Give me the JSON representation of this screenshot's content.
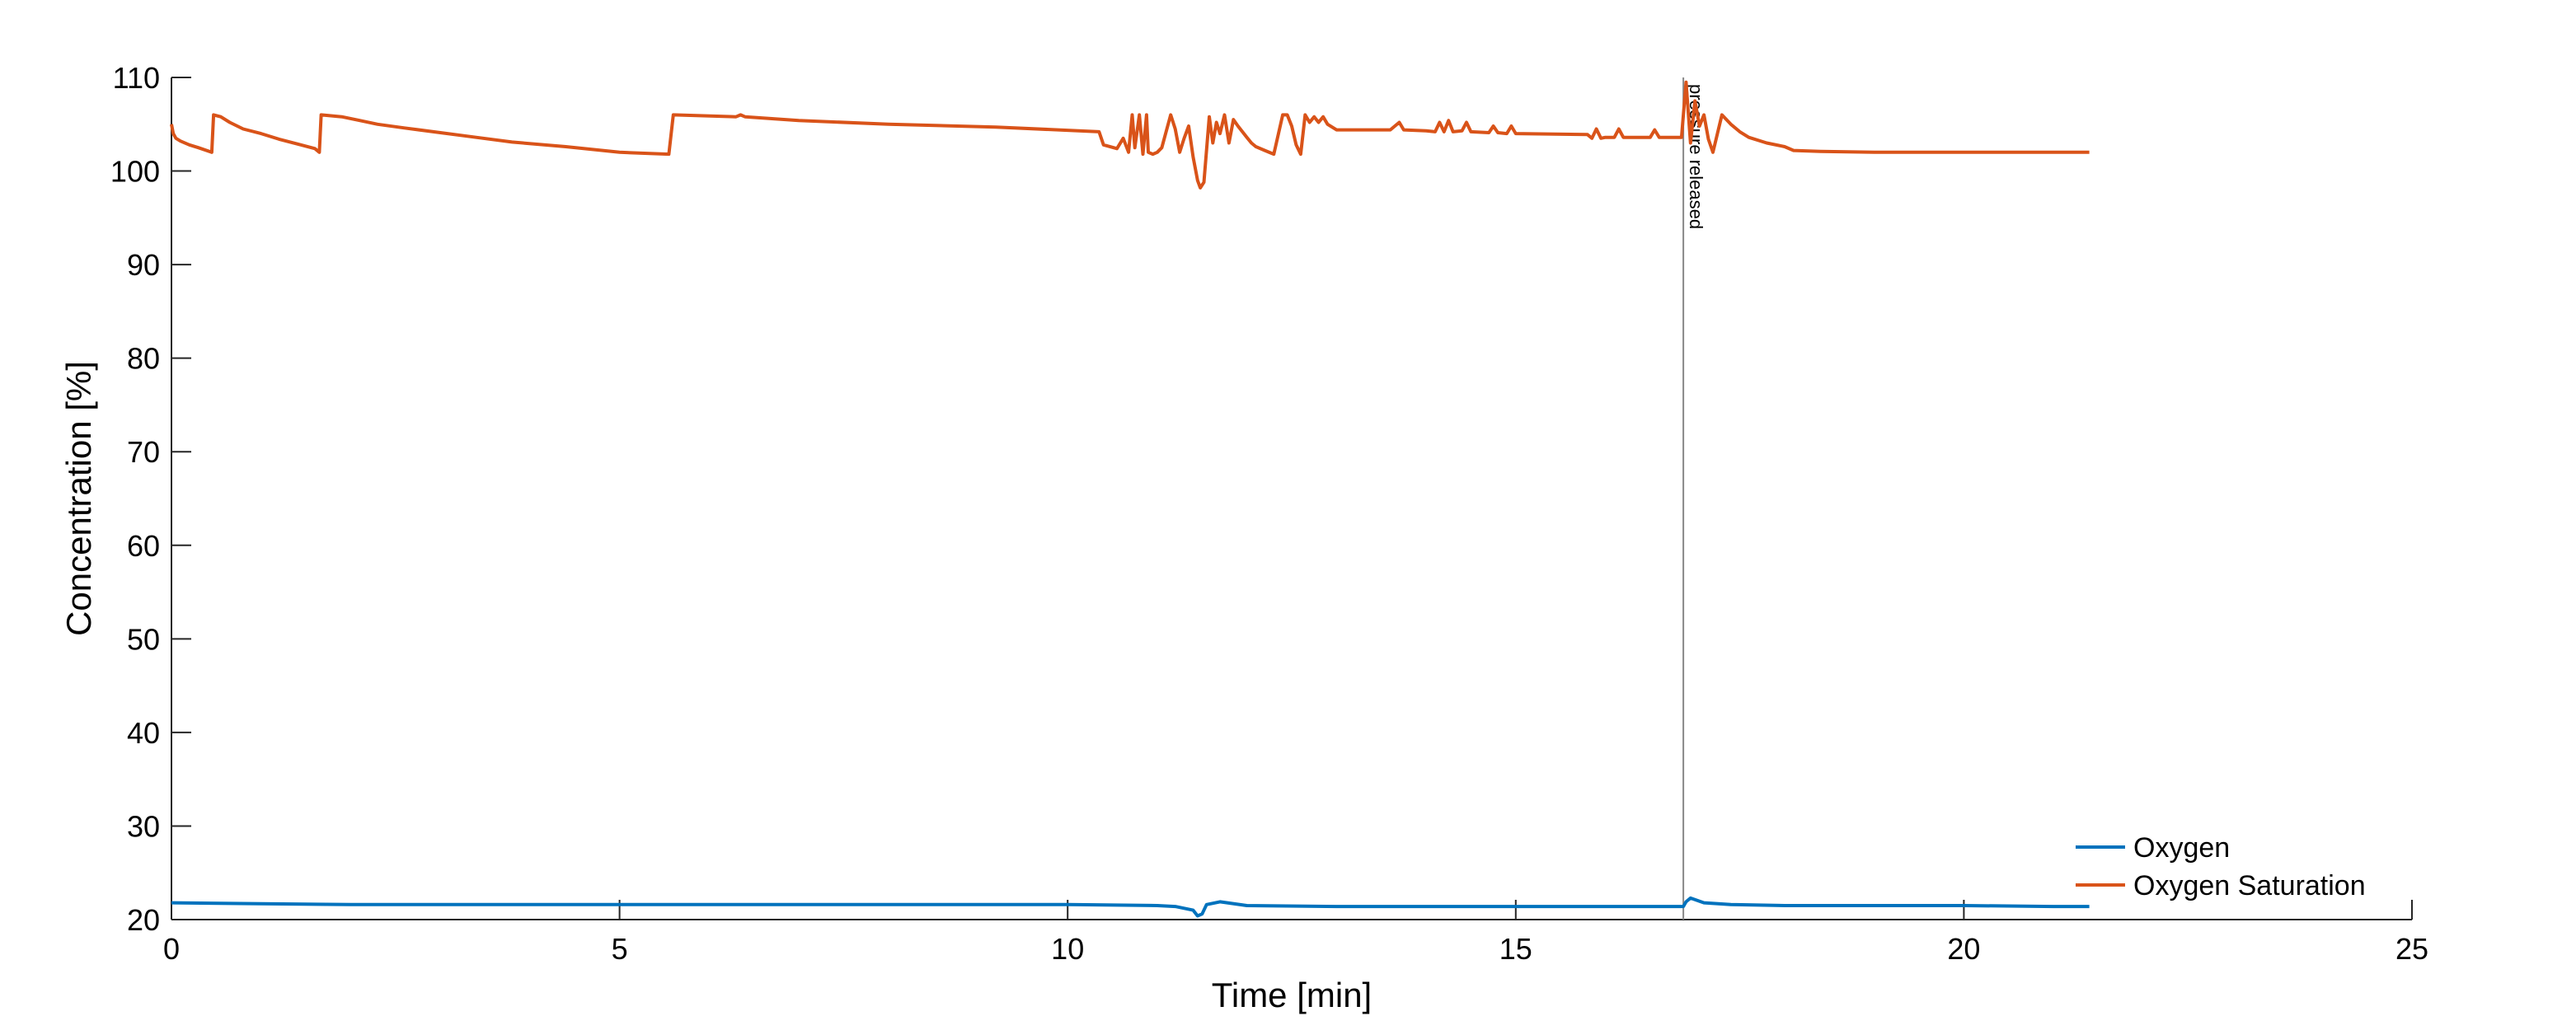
{
  "chart_data": {
    "type": "line",
    "xlabel": "Time [min]",
    "ylabel": "Concentration [%]",
    "xlim": [
      0,
      25
    ],
    "ylim": [
      20,
      110
    ],
    "xticks": [
      0,
      5,
      10,
      15,
      20,
      25
    ],
    "yticks": [
      20,
      30,
      40,
      50,
      60,
      70,
      80,
      90,
      100,
      110
    ],
    "grid": false,
    "legend_position": "bottom-right",
    "annotations": [
      {
        "type": "vertical-line",
        "x": 16.87,
        "text": "pressure released",
        "color": "#888888"
      }
    ],
    "series": [
      {
        "name": "Oxygen",
        "color": "#0072BD",
        "x": [
          0,
          1,
          2,
          3,
          4,
          5,
          6,
          7,
          8,
          9,
          10,
          11,
          11.2,
          11.4,
          11.45,
          11.5,
          11.55,
          11.7,
          12,
          13,
          14,
          15,
          16,
          16.87,
          16.9,
          16.95,
          17.1,
          17.4,
          18,
          19,
          20,
          21,
          21.4
        ],
        "y": [
          21.8,
          21.7,
          21.6,
          21.6,
          21.6,
          21.6,
          21.6,
          21.6,
          21.6,
          21.6,
          21.6,
          21.5,
          21.4,
          21.0,
          20.4,
          20.6,
          21.6,
          21.9,
          21.5,
          21.4,
          21.4,
          21.4,
          21.4,
          21.4,
          21.9,
          22.3,
          21.8,
          21.6,
          21.5,
          21.5,
          21.5,
          21.4,
          21.4
        ]
      },
      {
        "name": "Oxygen Saturation",
        "color": "#D95319",
        "x": [
          0,
          0.02,
          0.05,
          0.1,
          0.2,
          0.3,
          0.45,
          0.47,
          0.55,
          0.65,
          0.8,
          1.0,
          1.2,
          1.4,
          1.6,
          1.65,
          1.67,
          1.9,
          2.1,
          2.3,
          2.6,
          3.0,
          3.4,
          3.8,
          4.4,
          5.0,
          5.55,
          5.6,
          6.3,
          6.35,
          6.4,
          7.0,
          8.0,
          9.2,
          10.35,
          10.4,
          10.55,
          10.62,
          10.68,
          10.72,
          10.75,
          10.8,
          10.84,
          10.88,
          10.9,
          10.95,
          11.0,
          11.05,
          11.15,
          11.2,
          11.25,
          11.3,
          11.35,
          11.4,
          11.45,
          11.48,
          11.52,
          11.58,
          11.62,
          11.66,
          11.7,
          11.75,
          11.8,
          11.85,
          11.9,
          12.0,
          12.05,
          12.1,
          12.2,
          12.3,
          12.4,
          12.45,
          12.5,
          12.55,
          12.6,
          12.65,
          12.7,
          12.75,
          12.8,
          12.85,
          12.9,
          13.0,
          13.6,
          13.7,
          13.75,
          14.0,
          14.1,
          14.15,
          14.2,
          14.25,
          14.3,
          14.4,
          14.45,
          14.5,
          14.7,
          14.75,
          14.8,
          14.9,
          14.95,
          15.0,
          15.8,
          15.85,
          15.9,
          15.95,
          16.0,
          16.1,
          16.15,
          16.2,
          16.5,
          16.55,
          16.6,
          16.85,
          16.9,
          16.95,
          17.0,
          17.05,
          17.1,
          17.15,
          17.2,
          17.3,
          17.4,
          17.5,
          17.6,
          17.8,
          18.0,
          18.1,
          18.4,
          19.0,
          20.0,
          21.0,
          21.4
        ],
        "y": [
          105,
          104,
          103.5,
          103.2,
          102.8,
          102.5,
          102,
          106,
          105.8,
          105.2,
          104.5,
          104.0,
          103.4,
          102.9,
          102.4,
          102,
          106,
          105.8,
          105.4,
          105.0,
          104.6,
          104.1,
          103.6,
          103.1,
          102.6,
          102.0,
          101.8,
          106,
          105.8,
          106,
          105.8,
          105.4,
          105.0,
          104.7,
          104.2,
          102.8,
          102.4,
          103.5,
          102.0,
          106,
          102.5,
          106,
          101.8,
          106,
          102.0,
          101.8,
          102.0,
          102.5,
          106,
          104.5,
          102,
          103.5,
          104.8,
          101.5,
          99.0,
          98.2,
          98.8,
          105.8,
          103.0,
          105.2,
          104.0,
          106,
          103.0,
          105.5,
          104.8,
          103.6,
          103.0,
          102.6,
          102.2,
          101.8,
          106,
          106,
          104.8,
          102.8,
          101.8,
          106,
          105.2,
          105.8,
          105.2,
          105.8,
          105.0,
          104.4,
          104.4,
          105.2,
          104.4,
          104.3,
          104.2,
          105.2,
          104.2,
          105.4,
          104.2,
          104.3,
          105.2,
          104.2,
          104.1,
          104.8,
          104.1,
          104.0,
          104.8,
          104.0,
          103.9,
          103.5,
          104.5,
          103.5,
          103.6,
          103.6,
          104.5,
          103.6,
          103.6,
          104.4,
          103.6,
          103.6,
          109.5,
          103.0,
          107.5,
          104.8,
          106.0,
          103.4,
          102.0,
          106,
          105.0,
          104.2,
          103.6,
          103.0,
          102.6,
          102.2,
          102.1,
          102.0,
          102.0,
          102.0,
          102.0
        ]
      }
    ]
  }
}
